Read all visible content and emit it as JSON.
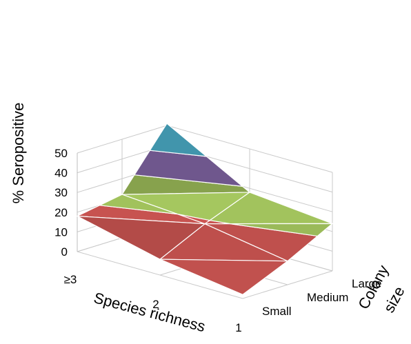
{
  "chart_data": {
    "type": "surface",
    "title": "",
    "ylabel": "% Seropositive",
    "xlabel": "Species richness",
    "zlabel": [
      "Colony",
      "size"
    ],
    "ylim": [
      0,
      50
    ],
    "yticks": [
      "0",
      "10",
      "20",
      "30",
      "40",
      "50"
    ],
    "species_richness": [
      "≥3",
      "2",
      "1"
    ],
    "colony_size": [
      "Small",
      "Medium",
      "Large"
    ],
    "values": [
      {
        "species_richness": "≥3",
        "Small": 18,
        "Medium": 22,
        "Large": 51
      },
      {
        "species_richness": "2",
        "Small": 8,
        "Medium": 19,
        "Large": 28
      },
      {
        "species_richness": "1",
        "Small": 2,
        "Medium": 12,
        "Large": 24
      }
    ],
    "band_colors": [
      {
        "range": "0-20",
        "color": "#c0504d"
      },
      {
        "range": "20-30",
        "color": "#9bbb59"
      },
      {
        "range": "30-40",
        "color": "#8064a2"
      },
      {
        "range": "40-50",
        "color": "#4bacc6"
      }
    ]
  }
}
